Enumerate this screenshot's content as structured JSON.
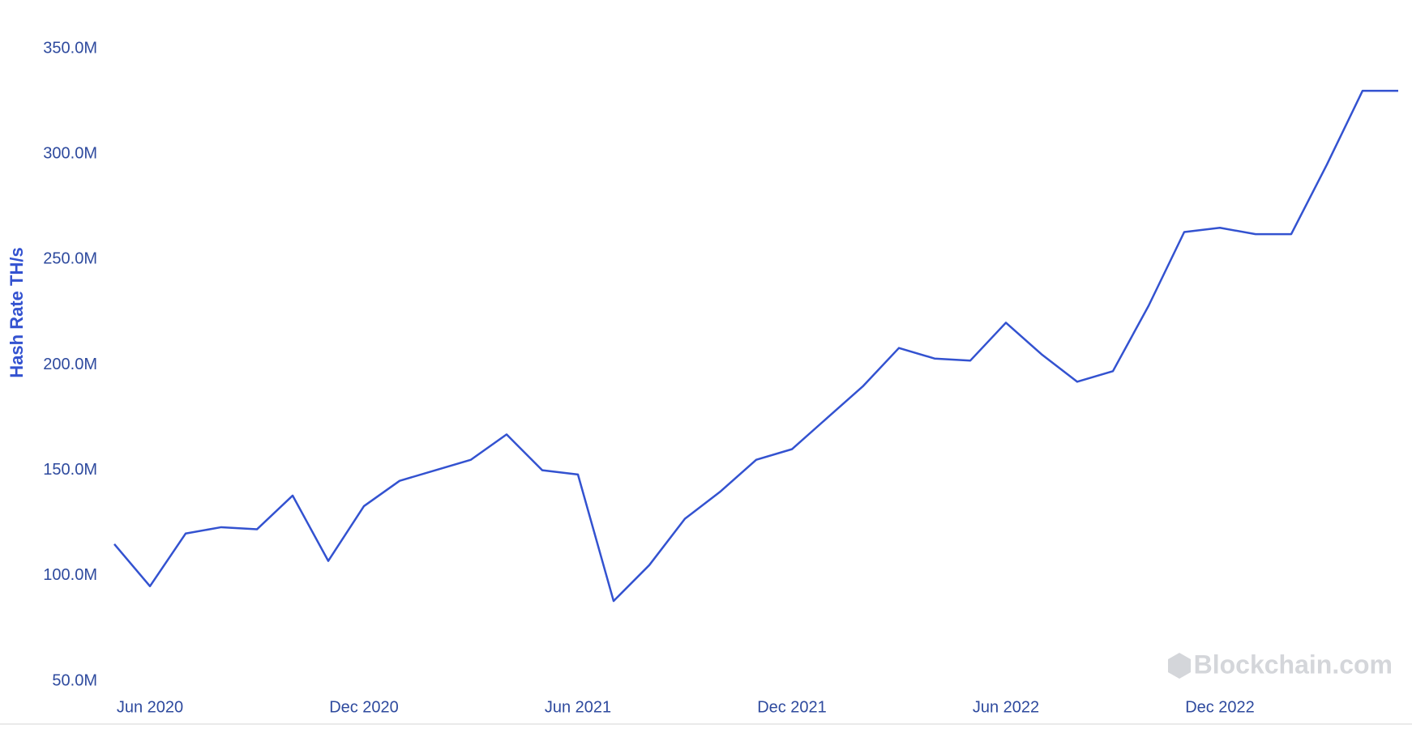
{
  "chart_data": {
    "type": "line",
    "y_label": "Hash Rate TH/s",
    "watermark": "Blockchain.com",
    "x": [
      "2020-05",
      "2020-06",
      "2020-07",
      "2020-08",
      "2020-09",
      "2020-10",
      "2020-11",
      "2020-12",
      "2021-01",
      "2021-02",
      "2021-03",
      "2021-04",
      "2021-05",
      "2021-06",
      "2021-07",
      "2021-08",
      "2021-09",
      "2021-10",
      "2021-11",
      "2021-12",
      "2022-01",
      "2022-02",
      "2022-03",
      "2022-04",
      "2022-05",
      "2022-06",
      "2022-07",
      "2022-08",
      "2022-09",
      "2022-10",
      "2022-11",
      "2022-12",
      "2023-01",
      "2023-02",
      "2023-03",
      "2023-04",
      "2023-05"
    ],
    "values": [
      115,
      95,
      120,
      123,
      122,
      138,
      107,
      133,
      145,
      150,
      155,
      167,
      150,
      148,
      88,
      105,
      127,
      140,
      155,
      160,
      175,
      190,
      208,
      203,
      202,
      220,
      205,
      192,
      197,
      228,
      263,
      265,
      262,
      262,
      295,
      330,
      330
    ],
    "color": "#3352d0",
    "ylim": [
      50,
      350
    ],
    "yticks": [
      {
        "value": 50,
        "label": "50.0M"
      },
      {
        "value": 100,
        "label": "100.0M"
      },
      {
        "value": 150,
        "label": "150.0M"
      },
      {
        "value": 200,
        "label": "200.0M"
      },
      {
        "value": 250,
        "label": "250.0M"
      },
      {
        "value": 300,
        "label": "300.0M"
      },
      {
        "value": 350,
        "label": "350.0M"
      }
    ],
    "xticks": [
      {
        "value": "2020-06",
        "label": "Jun 2020"
      },
      {
        "value": "2020-12",
        "label": "Dec 2020"
      },
      {
        "value": "2021-06",
        "label": "Jun 2021"
      },
      {
        "value": "2021-12",
        "label": "Dec 2021"
      },
      {
        "value": "2022-06",
        "label": "Jun 2022"
      },
      {
        "value": "2022-12",
        "label": "Dec 2022"
      }
    ],
    "grid": false
  }
}
